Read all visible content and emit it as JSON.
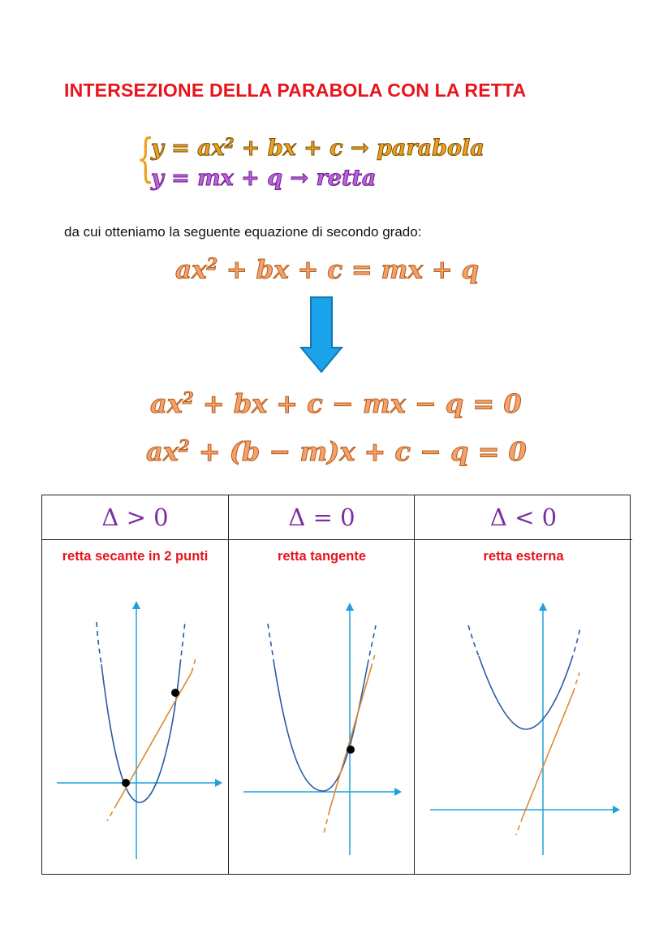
{
  "title": "INTERSEZIONE DELLA PARABOLA CON LA RETTA",
  "system": {
    "line1": "y = ax² + bx + c → parabola",
    "line2": "y = mx + q → retta"
  },
  "intro": "da cui otteniamo la seguente equazione di secondo grado:",
  "equations": {
    "eq1": "ax² + bx + c = mx + q",
    "eq2": "ax² + bx + c − mx − q = 0",
    "eq3": "ax² + (b − m)x + c − q = 0"
  },
  "colors": {
    "title": "#e8141c",
    "parabola_eq": "#f0a020",
    "retta_eq": "#c060e0",
    "equation": "#f4a16a",
    "arrow": "#1aa3e8",
    "axes": "#1ea0dc",
    "parabola_curve": "#2a5aa8",
    "line_curve": "#d98a30"
  },
  "table": {
    "columns": [
      {
        "header": "Δ > 0",
        "label": "retta secante in 2 punti"
      },
      {
        "header": "Δ = 0",
        "label": "retta tangente"
      },
      {
        "header": "Δ < 0",
        "label": "retta esterna"
      }
    ]
  }
}
